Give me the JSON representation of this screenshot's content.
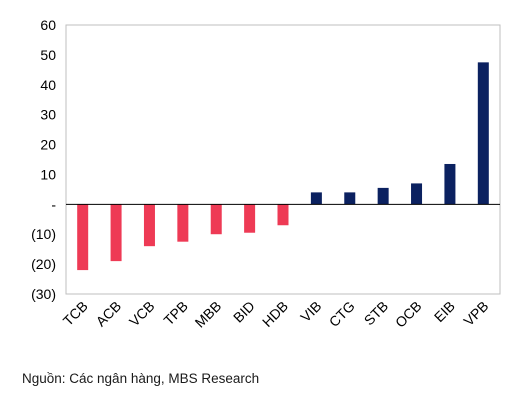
{
  "chart_data": {
    "type": "bar",
    "categories": [
      "TCB",
      "ACB",
      "VCB",
      "TPB",
      "MBB",
      "BID",
      "HDB",
      "VIB",
      "CTG",
      "STB",
      "OCB",
      "EIB",
      "VPB"
    ],
    "values": [
      -22,
      -19,
      -14,
      -12.5,
      -10,
      -9.5,
      -7,
      4,
      4,
      5.5,
      7,
      13.5,
      47.5
    ],
    "ylim": [
      -30,
      60
    ],
    "yticks": [
      60,
      50,
      40,
      30,
      20,
      10,
      0,
      -10,
      -20,
      -30
    ],
    "ytick_labels": [
      "60",
      "50",
      "40",
      "30",
      "20",
      "10",
      "-",
      "(10)",
      "(20)",
      "(30)"
    ],
    "title": "",
    "xlabel": "",
    "ylabel": "",
    "grid": false,
    "legend": "none",
    "colors": {
      "negative": "#ee3a55",
      "positive": "#0b2160",
      "axis": "#000000",
      "frame": "#bfbfbf"
    }
  },
  "source": "Nguồn: Các ngân hàng, MBS Research"
}
